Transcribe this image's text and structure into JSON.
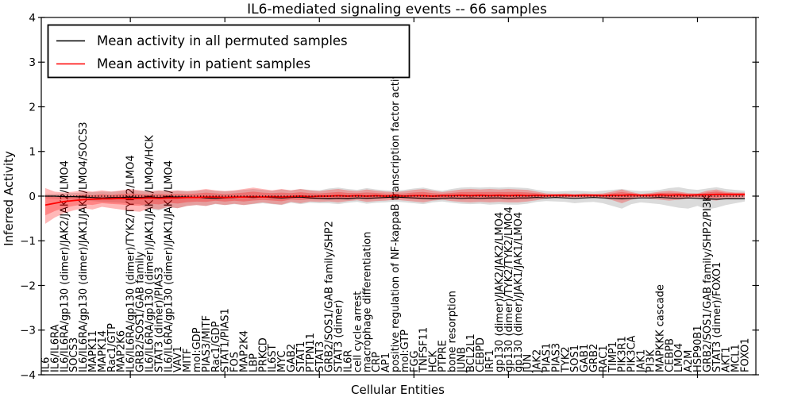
{
  "chart_data": {
    "type": "line",
    "title": "IL6-mediated signaling events -- 66 samples",
    "xlabel": "Cellular Entities",
    "ylabel": "Inferred Activity",
    "ylim": [
      -4,
      4
    ],
    "yticks": [
      -4,
      -3,
      -2,
      -1,
      0,
      1,
      2,
      3,
      4
    ],
    "x_major_tick_indices": [
      9,
      19,
      29,
      39,
      49,
      59,
      69
    ],
    "grid": false,
    "legend_position": "upper left",
    "zero_line": {
      "y": 0,
      "style": "dotted",
      "color": "#000000"
    },
    "categories": [
      "IL6",
      "IL6/IL6RA",
      "IL6/IL6RA/gp130 (dimer)/JAK2/JAK2/LMO4",
      "SOCS3",
      "IL6/IL6RA/gp130 (dimer)/JAK1/JAK1/LMO4/SOCS3",
      "MAPK11",
      "MAPK14",
      "Rac1/GTP",
      "MAP2K6",
      "IL6/IL6RA/gp130 (dimer)/TYK2/TYK2/LMO4",
      "GRB2/SOS1/GAB family",
      "IL6/IL6RA/gp130 (dimer)/JAK1/JAK1/LMO4/HCK",
      "STAT3 (dimer)/PIAS3",
      "IL6/IL6RA/gp130 (dimer)/JAK1/JAK1/LMO4",
      "VAV1",
      "MITF",
      "mol:GDP",
      "PIAS3/MITF",
      "Rac1/GDP",
      "STAT1/PIAS1",
      "FOS",
      "MAP2K4",
      "LBP",
      "PRKCD",
      "IL6ST",
      "MYC",
      "GAB2",
      "STAT1",
      "PTPN11",
      "STAT3",
      "GRB2/SOS1/GAB family/SHP2",
      "STAT3 (dimer)",
      "IL6R",
      "cell cycle arrest",
      "macrophage differentiation",
      "CRP",
      "AP1",
      "positive regulation of NF-kappaB transcription factor activity",
      "mol:GTP",
      "FGG",
      "TNFSF11",
      "HCK",
      "PTPRE",
      "bone resorption",
      "JUNB",
      "BCL2L1",
      "CEBPD",
      "IRF1",
      "gp130 (dimer)/JAK2/JAK2/LMO4",
      "gp130 (dimer)/TYK2/TYK2/LMO4",
      "gp130 (dimer)/JAK1/JAK1/LMO4",
      "JUN",
      "JAK2",
      "PIAS1",
      "PIAS3",
      "TYK2",
      "SOS1",
      "GAB1",
      "GRB2",
      "RAC1",
      "TIMP1",
      "PIK3R1",
      "PIK3CA",
      "JAK1",
      "PI3K",
      "MAPKKK cascade",
      "CEBPB",
      "LMO4",
      "A2M",
      "HSP90B1",
      "GRB2/SOS1/GAB family/SHP2/PI3K",
      "STAT3 (dimer)/FOXO1",
      "AKT1",
      "MCL1",
      "FOXO1"
    ],
    "series": [
      {
        "name": "Mean activity in all permuted samples",
        "color": "#000000",
        "band_color": "rgba(0,0,0,0.14)",
        "values": [
          0,
          0,
          -0.01,
          -0.01,
          -0.02,
          -0.03,
          -0.04,
          -0.03,
          -0.03,
          -0.02,
          -0.03,
          -0.02,
          -0.03,
          -0.02,
          -0.02,
          -0.02,
          -0.03,
          -0.04,
          -0.05,
          -0.04,
          -0.03,
          -0.02,
          -0.03,
          -0.02,
          -0.03,
          -0.04,
          -0.03,
          -0.02,
          -0.04,
          -0.05,
          -0.06,
          -0.05,
          -0.06,
          -0.04,
          -0.05,
          -0.04,
          -0.03,
          -0.02,
          -0.03,
          -0.04,
          -0.05,
          -0.06,
          -0.05,
          -0.04,
          -0.05,
          -0.04,
          -0.05,
          -0.04,
          -0.04,
          -0.05,
          -0.04,
          -0.04,
          -0.03,
          -0.04,
          -0.03,
          -0.04,
          -0.05,
          -0.04,
          -0.03,
          -0.04,
          -0.05,
          -0.06,
          -0.05,
          -0.04,
          -0.04,
          -0.03,
          -0.04,
          -0.05,
          -0.04,
          -0.05,
          -0.06,
          -0.07,
          -0.06,
          -0.06,
          -0.06
        ],
        "band_upper": [
          0.05,
          0.05,
          0.06,
          0.07,
          0.08,
          0.09,
          0.1,
          0.1,
          0.11,
          0.12,
          0.12,
          0.11,
          0.12,
          0.11,
          0.12,
          0.11,
          0.12,
          0.14,
          0.12,
          0.11,
          0.12,
          0.14,
          0.16,
          0.14,
          0.12,
          0.15,
          0.13,
          0.16,
          0.14,
          0.13,
          0.17,
          0.19,
          0.16,
          0.14,
          0.18,
          0.15,
          0.13,
          0.12,
          0.14,
          0.17,
          0.19,
          0.15,
          0.12,
          0.16,
          0.19,
          0.2,
          0.19,
          0.2,
          0.19,
          0.2,
          0.19,
          0.18,
          0.14,
          0.11,
          0.1,
          0.11,
          0.12,
          0.11,
          0.1,
          0.12,
          0.14,
          0.16,
          0.13,
          0.11,
          0.12,
          0.14,
          0.18,
          0.2,
          0.16,
          0.14,
          0.17,
          0.2,
          0.16,
          0.14,
          0.12
        ],
        "band_lower": [
          -0.05,
          -0.06,
          -0.07,
          -0.08,
          -0.09,
          -0.11,
          -0.13,
          -0.14,
          -0.15,
          -0.17,
          -0.18,
          -0.3,
          -0.32,
          -0.25,
          -0.27,
          -0.22,
          -0.2,
          -0.22,
          -0.18,
          -0.2,
          -0.18,
          -0.2,
          -0.18,
          -0.16,
          -0.18,
          -0.2,
          -0.15,
          -0.18,
          -0.15,
          -0.16,
          -0.16,
          -0.18,
          -0.15,
          -0.13,
          -0.17,
          -0.15,
          -0.14,
          -0.12,
          -0.14,
          -0.16,
          -0.18,
          -0.14,
          -0.12,
          -0.15,
          -0.17,
          -0.18,
          -0.17,
          -0.19,
          -0.18,
          -0.19,
          -0.19,
          -0.17,
          -0.13,
          -0.11,
          -0.12,
          -0.13,
          -0.16,
          -0.14,
          -0.13,
          -0.16,
          -0.22,
          -0.28,
          -0.18,
          -0.14,
          -0.16,
          -0.18,
          -0.22,
          -0.26,
          -0.28,
          -0.22,
          -0.3,
          -0.26,
          -0.2,
          -0.16,
          -0.12
        ]
      },
      {
        "name": "Mean activity in patient samples",
        "color": "#ff0000",
        "band_color": "rgba(255,0,0,0.28)",
        "values": [
          -0.2,
          -0.16,
          -0.12,
          -0.1,
          -0.08,
          -0.07,
          -0.06,
          -0.06,
          -0.05,
          -0.06,
          -0.05,
          -0.04,
          -0.05,
          -0.04,
          -0.04,
          -0.03,
          -0.03,
          -0.02,
          -0.02,
          -0.03,
          -0.02,
          -0.02,
          -0.01,
          -0.02,
          -0.01,
          -0.02,
          -0.01,
          0,
          -0.01,
          0,
          0,
          0.01,
          0,
          0.01,
          0,
          0.01,
          0,
          0.01,
          0,
          0.01,
          0.01,
          0,
          0.01,
          0.01,
          0.02,
          0.01,
          0.02,
          0.01,
          0.02,
          0.01,
          0.02,
          0.01,
          0.02,
          0.01,
          0.02,
          0.02,
          0.01,
          0.02,
          0.02,
          0.01,
          0.02,
          0.02,
          0.03,
          0.02,
          0.02,
          0.03,
          0.02,
          0.03,
          0.02,
          0.03,
          0.03,
          0.04,
          0.04,
          0.04,
          0.04
        ],
        "band_upper": [
          0.18,
          0.1,
          0.08,
          0.1,
          0.13,
          0.1,
          0.13,
          0.1,
          0.13,
          0.16,
          0.13,
          0.1,
          0.13,
          0.11,
          0.13,
          0.11,
          0.13,
          0.16,
          0.13,
          0.11,
          0.13,
          0.16,
          0.19,
          0.16,
          0.13,
          0.16,
          0.13,
          0.16,
          0.13,
          0.11,
          0.14,
          0.16,
          0.13,
          0.11,
          0.15,
          0.12,
          0.1,
          0.09,
          0.11,
          0.14,
          0.16,
          0.12,
          0.09,
          0.12,
          0.15,
          0.16,
          0.15,
          0.16,
          0.15,
          0.16,
          0.15,
          0.14,
          0.1,
          0.06,
          0.05,
          0.06,
          0.05,
          0.06,
          0.05,
          0.06,
          0.1,
          0.15,
          0.09,
          0.05,
          0.07,
          0.1,
          0.12,
          0.1,
          0.07,
          0.06,
          0.12,
          0.15,
          0.1,
          0.08,
          0.08
        ],
        "band_lower": [
          -0.62,
          -0.48,
          -0.38,
          -0.32,
          -0.27,
          -0.3,
          -0.24,
          -0.27,
          -0.3,
          -0.33,
          -0.35,
          -0.27,
          -0.3,
          -0.24,
          -0.27,
          -0.22,
          -0.2,
          -0.22,
          -0.17,
          -0.2,
          -0.17,
          -0.2,
          -0.17,
          -0.14,
          -0.17,
          -0.19,
          -0.13,
          -0.16,
          -0.12,
          -0.13,
          -0.12,
          -0.14,
          -0.11,
          -0.09,
          -0.13,
          -0.11,
          -0.1,
          -0.08,
          -0.1,
          -0.12,
          -0.14,
          -0.1,
          -0.08,
          -0.11,
          -0.13,
          -0.14,
          -0.13,
          -0.14,
          -0.13,
          -0.14,
          -0.14,
          -0.12,
          -0.09,
          -0.05,
          -0.04,
          -0.05,
          -0.04,
          -0.05,
          -0.04,
          -0.05,
          -0.09,
          -0.16,
          -0.08,
          -0.04,
          -0.06,
          -0.08,
          -0.1,
          -0.08,
          -0.06,
          -0.05,
          -0.08,
          -0.1,
          -0.06,
          -0.05,
          -0.04
        ]
      }
    ]
  }
}
